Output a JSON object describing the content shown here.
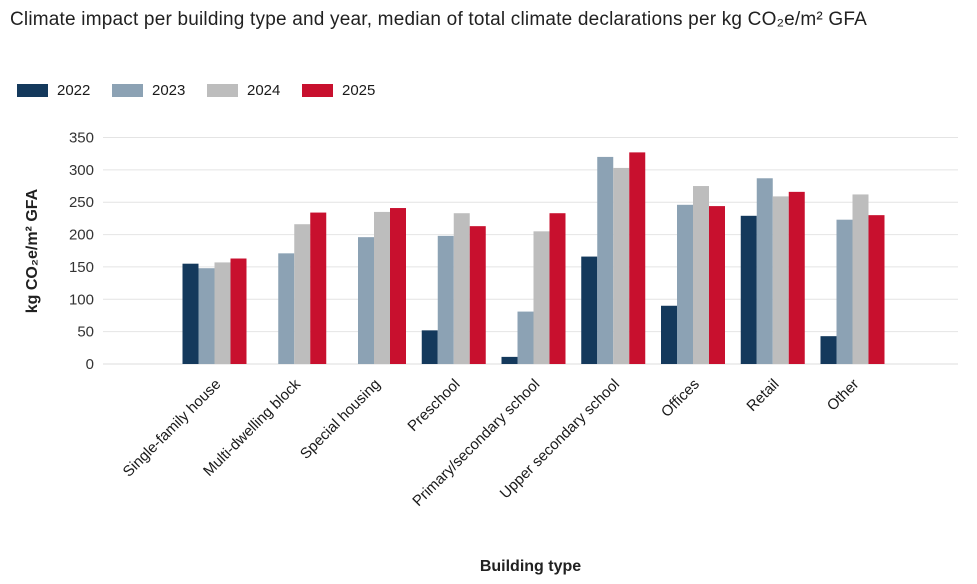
{
  "header": {
    "title": "Climate impact per building type and year, median of total climate declarations per kg CO₂e/m² GFA"
  },
  "chart_data": {
    "type": "bar",
    "title": "Climate impact per building type and year, median of total climate declarations per kg CO₂e/m² GFA",
    "xlabel": "Building type",
    "ylabel": "kg CO₂e/m² GFA",
    "ylim": [
      0,
      350
    ],
    "y_ticks": [
      0,
      50,
      100,
      150,
      200,
      250,
      300,
      350
    ],
    "grid": true,
    "legend_position": "top-left",
    "categories": [
      "Single-family house",
      "Multi-dwelling block",
      "Special housing",
      "Preschool",
      "Primary/secondary school",
      "Upper secondary school",
      "Offices",
      "Retail",
      "Other"
    ],
    "series": [
      {
        "name": "2022",
        "color": "#14395C",
        "values": [
          155,
          null,
          null,
          52,
          11,
          166,
          90,
          229,
          43
        ]
      },
      {
        "name": "2023",
        "color": "#8CA2B4",
        "values": [
          148,
          171,
          196,
          198,
          81,
          320,
          246,
          287,
          223
        ]
      },
      {
        "name": "2024",
        "color": "#BDBDBD",
        "values": [
          157,
          216,
          235,
          233,
          205,
          303,
          275,
          259,
          262
        ]
      },
      {
        "name": "2025",
        "color": "#C8102E",
        "values": [
          163,
          234,
          241,
          213,
          233,
          327,
          244,
          266,
          230
        ]
      }
    ]
  }
}
